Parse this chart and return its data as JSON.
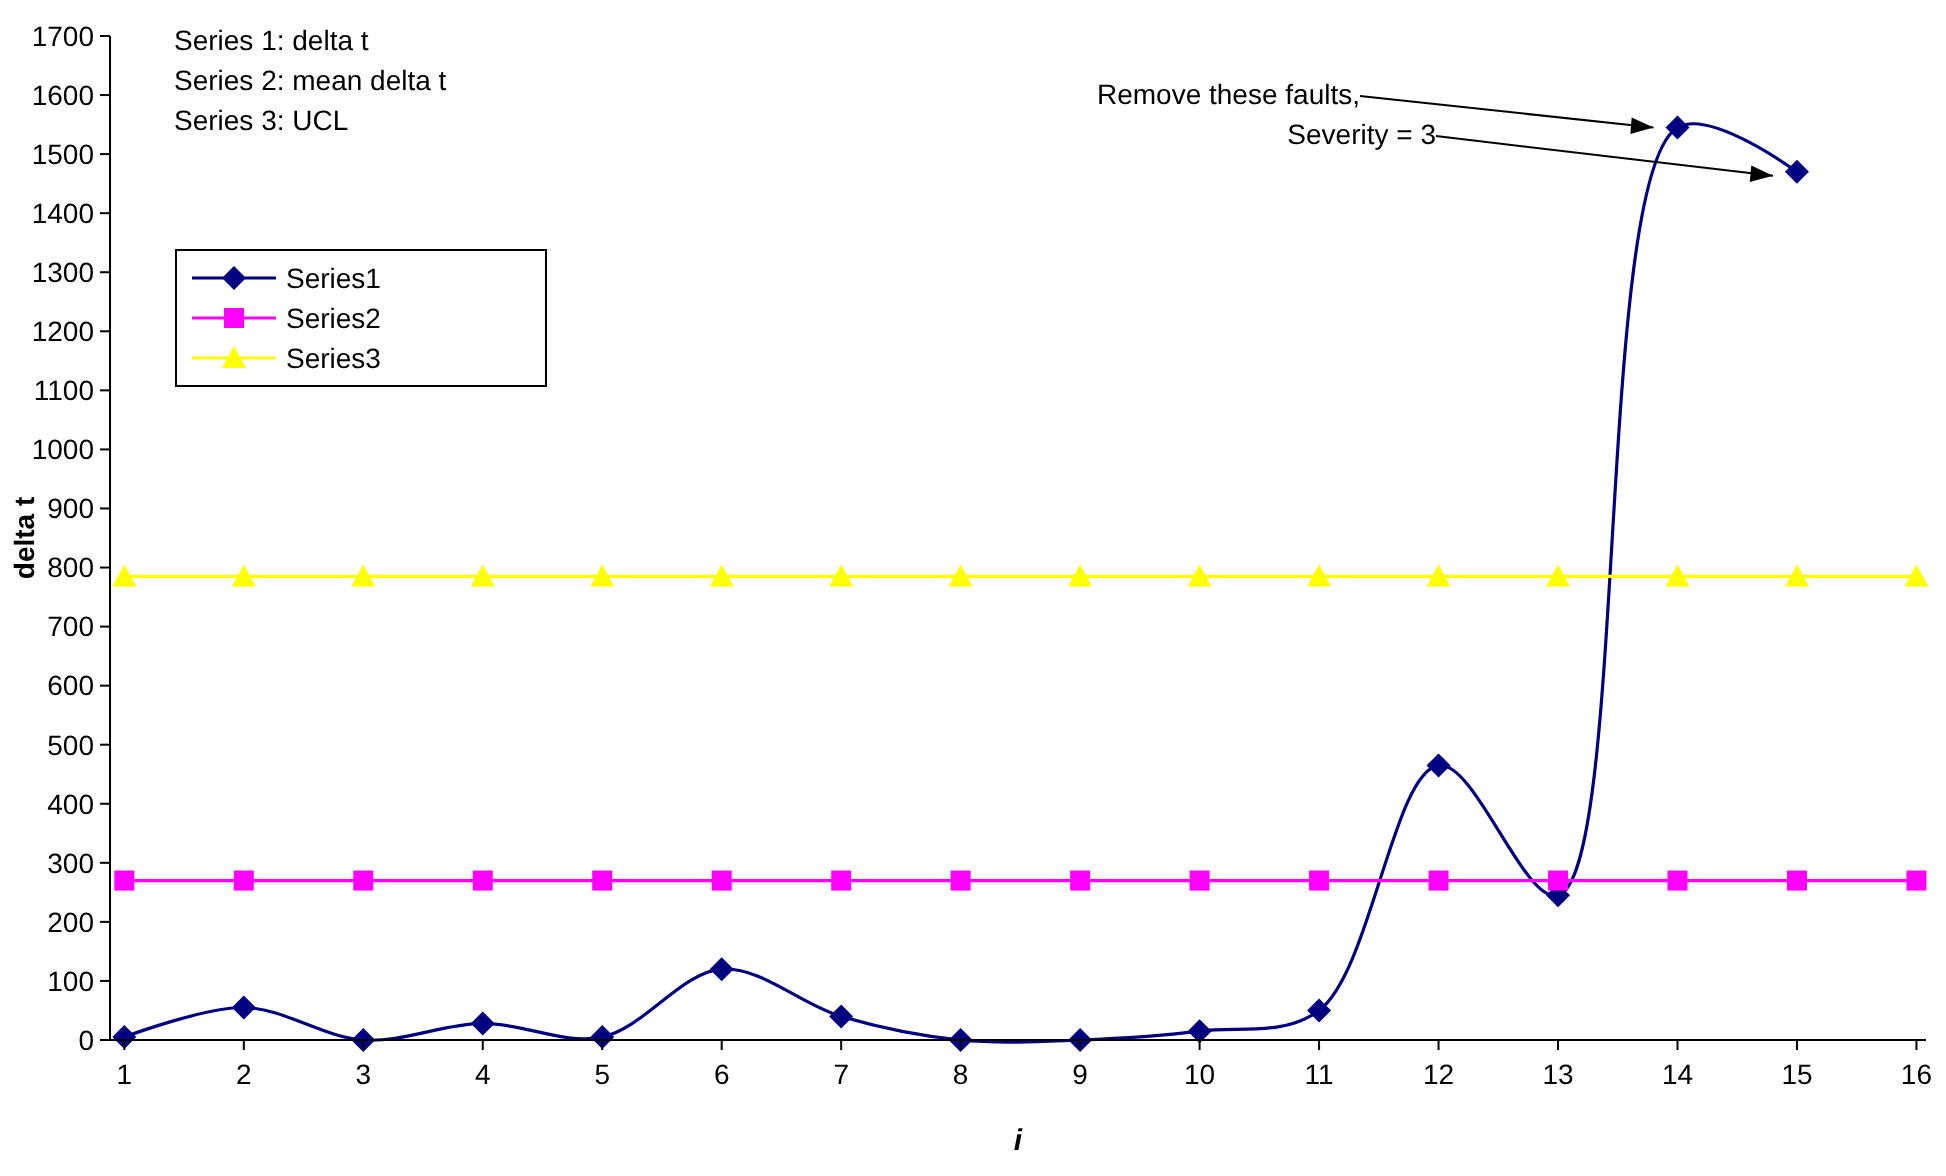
{
  "chart_data": {
    "type": "line",
    "xlabel": "i",
    "ylabel": "delta t",
    "x": [
      1,
      2,
      3,
      4,
      5,
      6,
      7,
      8,
      9,
      10,
      11,
      12,
      13,
      14,
      15,
      16
    ],
    "xlim": [
      0.88,
      16.08
    ],
    "xticks": [
      1,
      2,
      3,
      4,
      5,
      6,
      7,
      8,
      9,
      10,
      11,
      12,
      13,
      14,
      15,
      16
    ],
    "series": [
      {
        "name": "Series1",
        "color": "#000080",
        "marker": "diamond",
        "values": [
          5,
          55,
          0,
          28,
          5,
          120,
          40,
          0,
          0,
          15,
          50,
          465,
          245,
          1545,
          1470,
          null
        ]
      },
      {
        "name": "Series2",
        "color": "#ff00ff",
        "marker": "square",
        "values": [
          270,
          270,
          270,
          270,
          270,
          270,
          270,
          270,
          270,
          270,
          270,
          270,
          270,
          270,
          270,
          270
        ]
      },
      {
        "name": "Series3",
        "color": "#ffff00",
        "marker": "triangle",
        "values": [
          785,
          785,
          785,
          785,
          785,
          785,
          785,
          785,
          785,
          785,
          785,
          785,
          785,
          785,
          785,
          785
        ]
      }
    ],
    "ylim": [
      0,
      1700
    ],
    "yticks": [
      0,
      100,
      200,
      300,
      400,
      500,
      600,
      700,
      800,
      900,
      1000,
      1100,
      1200,
      1300,
      1400,
      1500,
      1600,
      1700
    ],
    "grid": false,
    "legend": "top left",
    "annotations": [
      "Series 1: delta t",
      "Series 2: mean delta t",
      "Series 3: UCL",
      "Remove these faults,",
      "Severity = 3"
    ]
  }
}
